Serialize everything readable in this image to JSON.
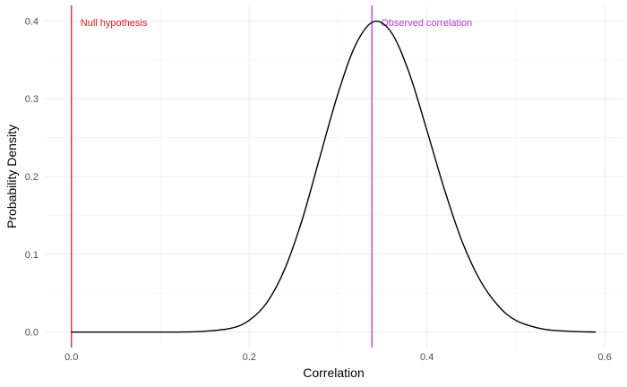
{
  "chart_data": {
    "type": "line",
    "title": "",
    "xlabel": "Correlation",
    "ylabel": "Probability Density",
    "xlim": [
      -0.03,
      0.62
    ],
    "ylim": [
      -0.02,
      0.42
    ],
    "x_ticks": [
      0.0,
      0.2,
      0.4,
      0.6
    ],
    "x_tick_labels": [
      "0.0",
      "0.2",
      "0.4",
      "0.6"
    ],
    "y_ticks": [
      0.0,
      0.1,
      0.2,
      0.3,
      0.4
    ],
    "y_tick_labels": [
      "0.0",
      "0.1",
      "0.2",
      "0.3",
      "0.4"
    ],
    "grid": true,
    "series": [
      {
        "color": "#000000",
        "x": [
          0.0,
          0.03,
          0.06,
          0.09,
          0.12,
          0.15,
          0.18,
          0.2,
          0.22,
          0.24,
          0.26,
          0.28,
          0.3,
          0.32,
          0.34,
          0.36,
          0.38,
          0.4,
          0.42,
          0.44,
          0.46,
          0.48,
          0.5,
          0.53,
          0.56,
          0.59
        ],
        "y": [
          0.0,
          0.0,
          0.0,
          0.0,
          0.0,
          0.001,
          0.005,
          0.015,
          0.038,
          0.081,
          0.146,
          0.227,
          0.307,
          0.37,
          0.399,
          0.385,
          0.333,
          0.259,
          0.182,
          0.115,
          0.066,
          0.034,
          0.015,
          0.004,
          0.001,
          0.0
        ]
      }
    ],
    "vlines": [
      {
        "x": 0.0,
        "color": "#e41a1c",
        "label": "Null hypothesis"
      },
      {
        "x": 0.338,
        "color": "#b23ae0",
        "label": "Observed correlation"
      }
    ]
  }
}
